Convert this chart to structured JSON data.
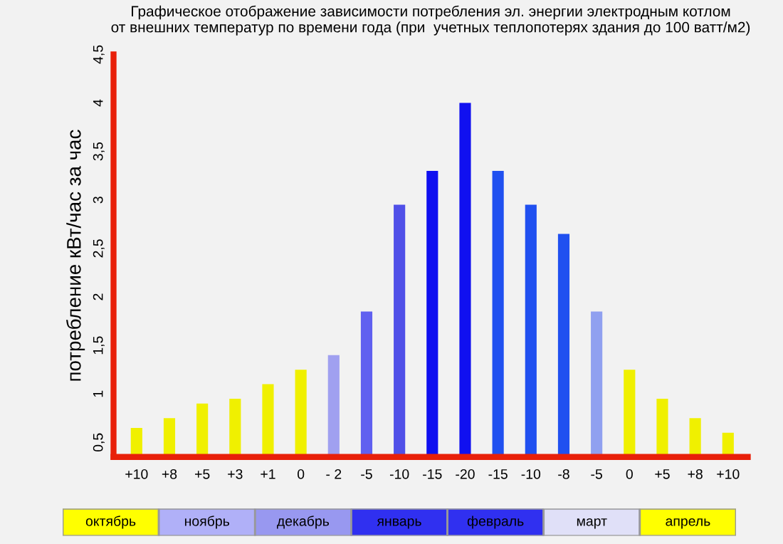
{
  "chart_data": {
    "type": "bar",
    "title": "Графическое отображение зависимости потребления эл. энергии электродным котлом\nот внешних температур по времени года (при  учетных теплопотерях здания до 100 ватт/м2)",
    "ylabel": "потребление кВт/час за час",
    "categories": [
      "+10",
      "+8",
      "+5",
      "+3",
      "+1",
      "0",
      "- 2",
      "-5",
      "-10",
      "-15",
      "-20",
      "-15",
      "-10",
      "-8",
      "-5",
      "0",
      "+5",
      "+8",
      "+10"
    ],
    "values": [
      0.65,
      0.75,
      0.9,
      0.95,
      1.1,
      1.25,
      1.4,
      1.85,
      2.95,
      3.3,
      4.0,
      3.3,
      2.95,
      2.65,
      1.85,
      1.25,
      0.95,
      0.75,
      0.6
    ],
    "colors": [
      "#f0f000",
      "#f0f000",
      "#f0f000",
      "#f0f000",
      "#f0f000",
      "#f0f000",
      "#a0a0f0",
      "#6060f0",
      "#5050e8",
      "#1010f0",
      "#1010f0",
      "#2050f0",
      "#2050f0",
      "#2050f0",
      "#90a0f0",
      "#f0f000",
      "#f0f000",
      "#f0f000",
      "#f0f000"
    ],
    "ylim": [
      0.35,
      4.5
    ],
    "yticks": [
      {
        "value": 0.5,
        "label": "0,5"
      },
      1,
      {
        "value": 1.5,
        "label": "1,5"
      },
      2,
      {
        "value": 2.5,
        "label": "2,5"
      },
      3,
      {
        "value": 3.5,
        "label": "3,5"
      },
      4,
      {
        "value": 4.5,
        "label": "4,5"
      }
    ],
    "annotations": [
      "октябрь",
      "ноябрь",
      "декабрь",
      "январь",
      "февраль",
      "март",
      "апрель"
    ],
    "grid": false,
    "legend": false
  }
}
